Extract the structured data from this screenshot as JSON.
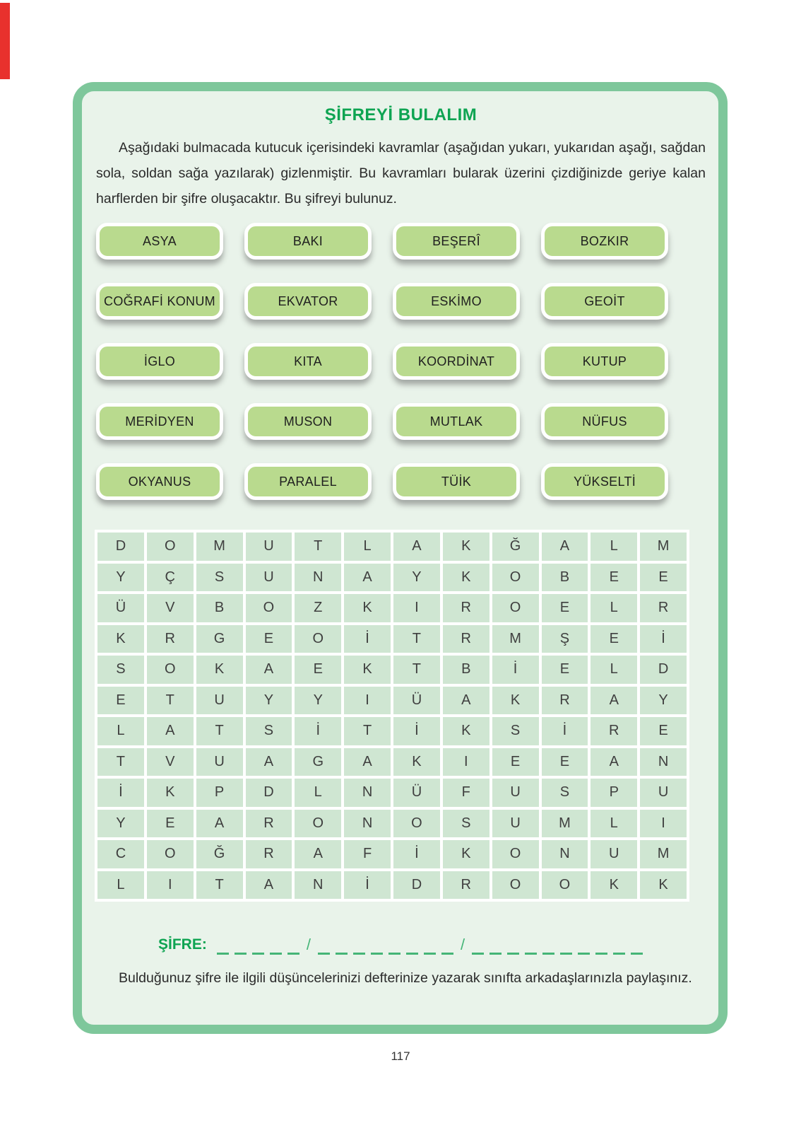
{
  "title": "ŞİFREYİ BULALIM",
  "intro": "Aşağıdaki bulmacada kutucuk içerisindeki kavramlar (aşağıdan yukarı, yukarıdan aşağı, sağdan sola, soldan sağa yazılarak) gizlenmiştir. Bu kavramları bularak üzerini çizdiğinizde geriye kalan harflerden bir şifre oluşacaktır. Bu şifreyi bulunuz.",
  "words": [
    "ASYA",
    "BAKI",
    "BEŞERÎ",
    "BOZKIR",
    "COĞRAFİ KONUM",
    "EKVATOR",
    "ESKİMO",
    "GEOİT",
    "İGLO",
    "KITA",
    "KOORDİNAT",
    "KUTUP",
    "MERİDYEN",
    "MUSON",
    "MUTLAK",
    "NÜFUS",
    "OKYANUS",
    "PARALEL",
    "TÜİK",
    "YÜKSELTİ"
  ],
  "grid": {
    "rows": [
      [
        "D",
        "O",
        "M",
        "U",
        "T",
        "L",
        "A",
        "K",
        "Ğ",
        "A",
        "L",
        "M"
      ],
      [
        "Y",
        "Ç",
        "S",
        "U",
        "N",
        "A",
        "Y",
        "K",
        "O",
        "B",
        "E",
        "E"
      ],
      [
        "Ü",
        "V",
        "B",
        "O",
        "Z",
        "K",
        "I",
        "R",
        "O",
        "E",
        "L",
        "R"
      ],
      [
        "K",
        "R",
        "G",
        "E",
        "O",
        "İ",
        "T",
        "R",
        "M",
        "Ş",
        "E",
        "İ"
      ],
      [
        "S",
        "O",
        "K",
        "A",
        "E",
        "K",
        "T",
        "B",
        "İ",
        "E",
        "L",
        "D"
      ],
      [
        "E",
        "T",
        "U",
        "Y",
        "Y",
        "I",
        "Ü",
        "A",
        "K",
        "R",
        "A",
        "Y"
      ],
      [
        "L",
        "A",
        "T",
        "S",
        "İ",
        "T",
        "İ",
        "K",
        "S",
        "İ",
        "R",
        "E"
      ],
      [
        "T",
        "V",
        "U",
        "A",
        "G",
        "A",
        "K",
        "I",
        "E",
        "E",
        "A",
        "N"
      ],
      [
        "İ",
        "K",
        "P",
        "D",
        "L",
        "N",
        "Ü",
        "F",
        "U",
        "S",
        "P",
        "U"
      ],
      [
        "Y",
        "E",
        "A",
        "R",
        "O",
        "N",
        "O",
        "S",
        "U",
        "M",
        "L",
        "I"
      ],
      [
        "C",
        "O",
        "Ğ",
        "R",
        "A",
        "F",
        "İ",
        "K",
        "O",
        "N",
        "U",
        "M"
      ],
      [
        "L",
        "I",
        "T",
        "A",
        "N",
        "İ",
        "D",
        "R",
        "O",
        "O",
        "K",
        "K"
      ]
    ]
  },
  "cipher": {
    "label": "ŞİFRE:",
    "blank_groups": [
      5,
      8,
      10
    ],
    "separator": "/"
  },
  "footer_note": "Bulduğunuz şifre ile ilgili düşüncelerinizi defterinize yazarak sınıfta arkadaşlarınızla paylaşınız.",
  "page_number": "117",
  "colors": {
    "card_border": "#7ec79b",
    "card_bg": "#e9f3ea",
    "button_bg": "#b9da8e",
    "cell_bg": "#cfe6d2",
    "title_green": "#0ea452",
    "dash_green": "#45b577",
    "red_tab": "#e8312d"
  }
}
